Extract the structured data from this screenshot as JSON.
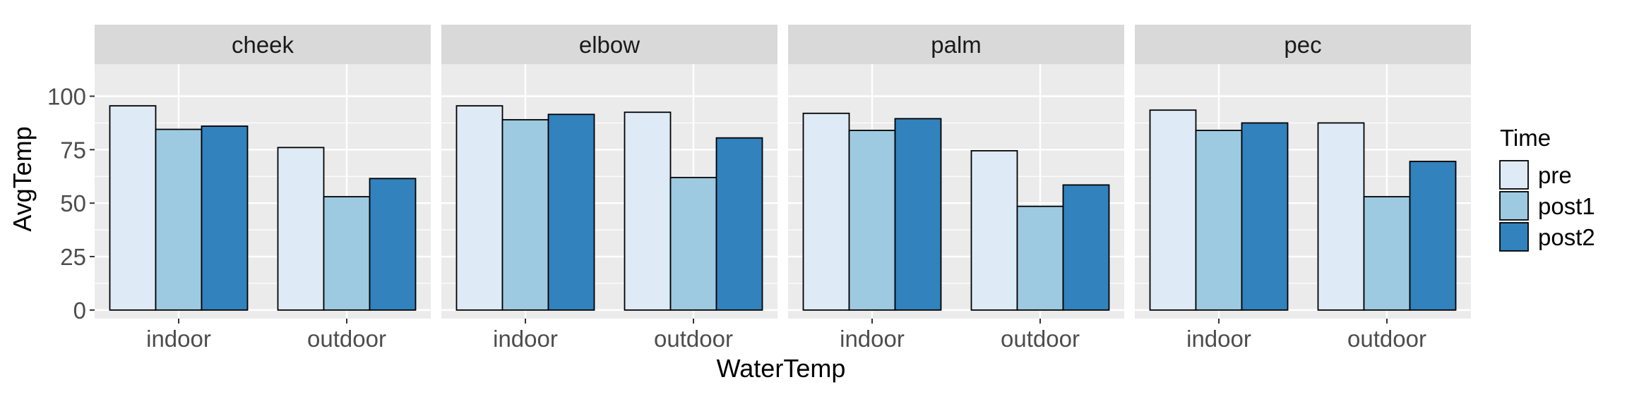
{
  "chart_data": {
    "type": "bar",
    "facet_by": "body part",
    "facets": [
      "cheek",
      "elbow",
      "palm",
      "pec"
    ],
    "categories": [
      "indoor",
      "outdoor"
    ],
    "xlabel": "WaterTemp",
    "ylabel": "AvgTemp",
    "ylim": [
      -4,
      115
    ],
    "yticks": [
      0,
      25,
      50,
      75,
      100
    ],
    "grid": true,
    "legend": {
      "title": "Time",
      "placement": "right",
      "entries": [
        "pre",
        "post1",
        "post2"
      ]
    },
    "series": [
      {
        "name": "pre",
        "color": "#DEEBF7"
      },
      {
        "name": "post1",
        "color": "#9ECAE1"
      },
      {
        "name": "post2",
        "color": "#3182BD"
      }
    ],
    "data": {
      "cheek": {
        "indoor": [
          95.5,
          84.5,
          86
        ],
        "outdoor": [
          76,
          53,
          61.5
        ]
      },
      "elbow": {
        "indoor": [
          95.5,
          89,
          91.5
        ],
        "outdoor": [
          92.5,
          62,
          80.5
        ]
      },
      "palm": {
        "indoor": [
          92,
          84,
          89.5
        ],
        "outdoor": [
          74.5,
          48.5,
          58.5
        ]
      },
      "pec": {
        "indoor": [
          93.5,
          84,
          87.5
        ],
        "outdoor": [
          87.5,
          53,
          69.5
        ]
      }
    },
    "colors": {
      "panel_bg": "#EBEBEB",
      "strip_bg": "#D9D9D9",
      "grid_major": "#FFFFFF",
      "bar_outline": "#000000"
    }
  }
}
